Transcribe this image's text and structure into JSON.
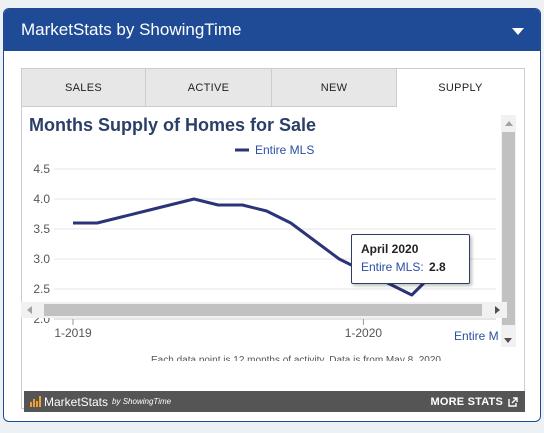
{
  "header": {
    "title": "MarketStats by ShowingTime"
  },
  "tabs": [
    {
      "label": "SALES"
    },
    {
      "label": "ACTIVE"
    },
    {
      "label": "NEW"
    },
    {
      "label": "SUPPLY"
    }
  ],
  "chart_data": {
    "type": "line",
    "title": "Months Supply of Homes for Sale",
    "series": [
      {
        "name": "Entire MLS",
        "x": [
          "1-2019",
          "2-2019",
          "3-2019",
          "4-2019",
          "5-2019",
          "6-2019",
          "7-2019",
          "8-2019",
          "9-2019",
          "10-2019",
          "11-2019",
          "12-2019",
          "1-2020",
          "2-2020",
          "3-2020",
          "4-2020",
          "5-2020"
        ],
        "values": [
          3.6,
          3.6,
          3.7,
          3.8,
          3.9,
          4.0,
          3.9,
          3.9,
          3.8,
          3.6,
          3.3,
          3.0,
          2.8,
          2.6,
          2.4,
          2.8,
          2.8
        ]
      }
    ],
    "y_ticks": [
      "4.5",
      "4.0",
      "3.5",
      "3.0",
      "2.5",
      "2.0"
    ],
    "x_ticks": [
      "1-2019",
      "1-2020"
    ],
    "ylim": [
      2.0,
      4.5
    ],
    "legend_position": "top-center",
    "series_color": "#2b3478"
  },
  "tooltip": {
    "title": "April 2020",
    "series_label": "Entire MLS:",
    "value": "2.8"
  },
  "overflow_label": "Entire M",
  "footnote": "Each data point is 12 months of activity. Data is from May 8, 2020.",
  "footer": {
    "brand_main": "MarketStats",
    "brand_by": "by ShowingTime",
    "more_label": "MORE STATS"
  }
}
